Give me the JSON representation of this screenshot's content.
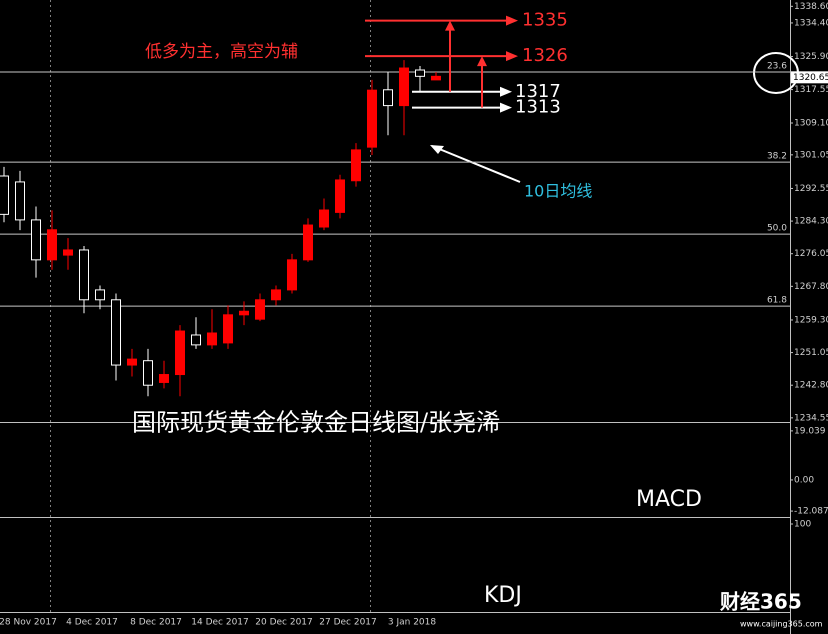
{
  "chart_data": {
    "type": "candlestick",
    "title": "国际现货黄金伦敦金日线图/张尧浠",
    "categories": [
      null,
      "28 Nov 2017",
      null,
      null,
      null,
      "4 Dec 2017",
      null,
      null,
      null,
      "8 Dec 2017",
      null,
      null,
      null,
      "14 Dec 2017",
      null,
      null,
      null,
      "20 Dec 2017",
      null,
      null,
      null,
      "27 Dec 2017",
      null,
      null,
      null,
      "3 Jan 2018",
      null,
      null
    ],
    "open": [
      1295.7,
      1294.2,
      1284.6,
      1274.5,
      1275.7,
      1277.0,
      1266.9,
      1264.4,
      1247.9,
      1249.0,
      1243.5,
      1245.5,
      1255.5,
      1253.0,
      1253.5,
      1260.6,
      1259.5,
      1264.4,
      1266.9,
      1274.5,
      1282.8,
      1286.5,
      1294.5,
      1303.0,
      1317.5,
      1313.5,
      1322.5,
      1320.0
    ],
    "high": [
      1298.0,
      1297.0,
      1288.0,
      1287.0,
      1280.0,
      1278.0,
      1268.0,
      1266.0,
      1252.0,
      1252.0,
      1249.0,
      1258.0,
      1260.0,
      1262.0,
      1263.0,
      1264.0,
      1266.0,
      1268.0,
      1276.0,
      1285.0,
      1290.0,
      1296.0,
      1304.0,
      1320.0,
      1322.0,
      1325.0,
      1323.5,
      1322.0
    ],
    "low": [
      1284.0,
      1282.0,
      1270.0,
      1272.0,
      1272.0,
      1261.0,
      1262.0,
      1244.0,
      1245.0,
      1240.0,
      1242.0,
      1240.0,
      1252.0,
      1252.0,
      1252.0,
      1258.0,
      1259.0,
      1263.0,
      1266.0,
      1274.0,
      1282.0,
      1285.0,
      1293.0,
      1301.0,
      1306.0,
      1306.0,
      1317.0,
      1320.0
    ],
    "close": [
      1286.0,
      1284.6,
      1274.5,
      1282.1,
      1277.0,
      1264.4,
      1264.4,
      1247.9,
      1249.4,
      1242.8,
      1245.5,
      1256.5,
      1253.0,
      1256.0,
      1260.6,
      1261.5,
      1264.4,
      1266.9,
      1274.5,
      1283.3,
      1287.1,
      1294.7,
      1302.3,
      1317.4,
      1313.5,
      1323.0,
      1320.9,
      1320.9
    ],
    "up_color": "#ff0000",
    "down_color": "#ffffff",
    "ylim": [
      1233.5,
      1340.2
    ],
    "yticks": [
      {
        "value": 1338.6,
        "label": "1338.60"
      },
      {
        "value": 1334.4,
        "label": "1334.40"
      },
      {
        "value": 1325.9,
        "label": "1325.90"
      },
      1317.55,
      {
        "value": 1309.1,
        "label": "1309.10"
      },
      1301.05,
      1292.55,
      {
        "value": 1284.3,
        "label": "1284.30"
      },
      1276.05,
      {
        "value": 1267.8,
        "label": "1267.80"
      },
      {
        "value": 1259.3,
        "label": "1259.30"
      },
      1251.05,
      {
        "value": 1242.8,
        "label": "1242.80"
      },
      1234.55
    ],
    "last_price": 1320.65,
    "fib_levels": [
      {
        "label": "23.6",
        "price": 1322.0
      },
      {
        "label": "38.2",
        "price": 1299.2
      },
      {
        "label": "50.0",
        "price": 1281.0
      },
      {
        "label": "61.8",
        "price": 1262.8
      }
    ],
    "annotations": {
      "strategy": "低多为主，高空为辅",
      "ma_label": "10日均线",
      "resistance": [
        1335,
        1326
      ],
      "support": [
        1317,
        1313
      ]
    },
    "macd": {
      "title": "MACD",
      "ylim": [
        -14,
        22.1
      ],
      "yticks": [
        19.039,
        {
          "value": 0,
          "label": "0.00"
        },
        -12.087
      ]
    },
    "kdj": {
      "title": "KDJ",
      "ylim": [
        -26,
        107
      ],
      "yticks": [
        100
      ]
    }
  },
  "watermark": {
    "brand": "财经365",
    "url": "www.caijing365.com"
  }
}
